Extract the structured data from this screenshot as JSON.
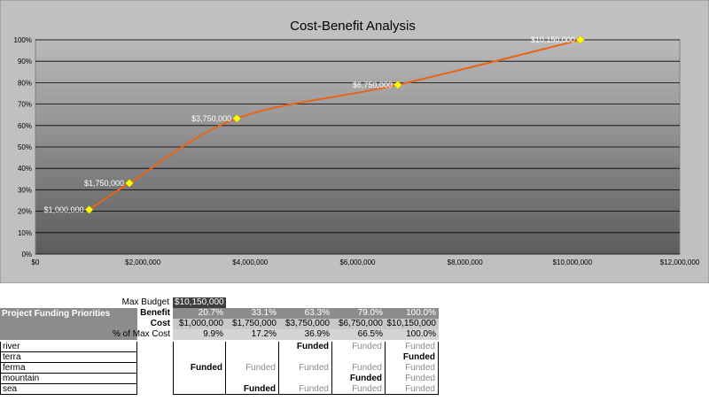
{
  "chart_data": {
    "type": "line",
    "title": "Cost-Benefit Analysis",
    "x": [
      1000000,
      1750000,
      3750000,
      6750000,
      10150000
    ],
    "y": [
      20.7,
      33.1,
      63.3,
      79.0,
      100.0
    ],
    "point_labels": [
      "$1,000,000",
      "$1,750,000",
      "$3,750,000",
      "$6,750,000",
      "$10,150,000"
    ],
    "xlim": [
      0,
      12000000
    ],
    "ylim": [
      0,
      100
    ],
    "x_ticks": [
      0,
      2000000,
      4000000,
      6000000,
      8000000,
      10000000,
      12000000
    ],
    "x_tick_labels": [
      "$0",
      "$2,000,000",
      "$4,000,000",
      "$6,000,000",
      "$8,000,000",
      "$10,000,000",
      "$12,000,000"
    ],
    "y_ticks": [
      0,
      10,
      20,
      30,
      40,
      50,
      60,
      70,
      80,
      90,
      100
    ],
    "y_tick_labels": [
      "0%",
      "10%",
      "20%",
      "30%",
      "40%",
      "50%",
      "60%",
      "70%",
      "80%",
      "90%",
      "100%"
    ],
    "grid": true,
    "legend": "none",
    "colors": {
      "line": "#e8641b",
      "marker": "#ffff00",
      "plot_bg_top": "#b9b9b9",
      "plot_bg_bottom": "#5a5a5a",
      "frame_bg": "#c0c0c0"
    }
  },
  "table": {
    "max_budget_label": "Max Budget",
    "max_budget_value": "$10,150,000",
    "header_title": "Project Funding Priorities",
    "row_labels": {
      "benefit": "Benefit",
      "cost": "Cost",
      "pct": "% of Max Cost"
    },
    "benefit": [
      "20.7%",
      "33.1%",
      "63.3%",
      "79.0%",
      "100.0%"
    ],
    "cost": [
      "$1,000,000",
      "$1,750,000",
      "$3,750,000",
      "$6,750,000",
      "$10,150,000"
    ],
    "pct": [
      "9.9%",
      "17.2%",
      "36.9%",
      "66.5%",
      "100.0%"
    ],
    "projects": [
      {
        "name": "river",
        "cells": [
          "",
          "",
          "Funded",
          "Funded",
          "Funded"
        ],
        "bold": [
          false,
          false,
          true,
          false,
          false
        ]
      },
      {
        "name": "terra",
        "cells": [
          "",
          "",
          "",
          "",
          "Funded"
        ],
        "bold": [
          false,
          false,
          false,
          false,
          true
        ]
      },
      {
        "name": "ferma",
        "cells": [
          "Funded",
          "Funded",
          "Funded",
          "Funded",
          "Funded"
        ],
        "bold": [
          true,
          false,
          false,
          false,
          false
        ]
      },
      {
        "name": "mountain",
        "cells": [
          "",
          "",
          "",
          "Funded",
          "Funded"
        ],
        "bold": [
          false,
          false,
          false,
          true,
          false
        ]
      },
      {
        "name": "sea",
        "cells": [
          "",
          "Funded",
          "Funded",
          "Funded",
          "Funded"
        ],
        "bold": [
          false,
          true,
          false,
          false,
          false
        ]
      }
    ]
  }
}
